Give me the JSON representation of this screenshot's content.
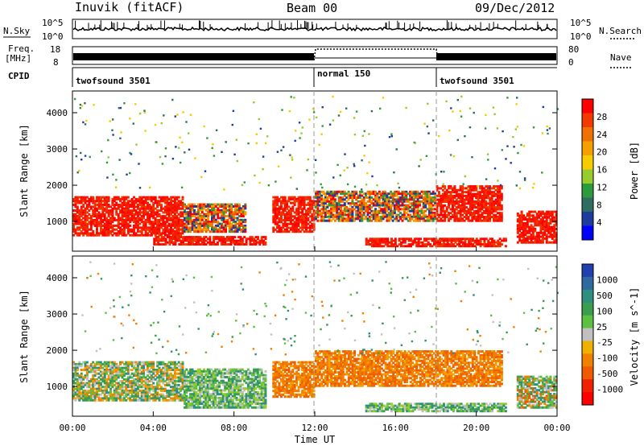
{
  "header": {
    "station": "Inuvik (fitACF)",
    "beam": "Beam 00",
    "date": "09/Dec/2012"
  },
  "top_panels": {
    "nsky_label": "N.Sky",
    "nsky_ticks": [
      "10^5",
      "10^0"
    ],
    "nsky_right_ticks": [
      "10^5",
      "10^0"
    ],
    "nsearch_label": "N.Search",
    "freq_label_line1": "Freq.",
    "freq_label_line2": "[MHz]",
    "freq_ticks": [
      "18",
      "8"
    ],
    "nave_ticks": [
      "80",
      "0"
    ],
    "nave_label": "Nave",
    "cpid_label": "CPID",
    "cpid_segments": [
      {
        "label": "twofsound 3501",
        "start_hour": 0,
        "end_hour": 12
      },
      {
        "label": "normal 150",
        "start_hour": 12,
        "end_hour": 18
      },
      {
        "label": "twofsound 3501",
        "start_hour": 18,
        "end_hour": 24
      }
    ]
  },
  "chart_data": [
    {
      "type": "heatmap",
      "ylabel": "Slant Range [km]",
      "xlabel": "Time UT",
      "xlim": [
        0,
        24
      ],
      "ylim": [
        180,
        4600
      ],
      "yticks": [
        "1000",
        "2000",
        "3000",
        "4000"
      ],
      "xticks": [
        "00:00",
        "04:00",
        "08:00",
        "12:00",
        "16:00",
        "20:00",
        "00:00"
      ],
      "colorbar": {
        "label": "Power [dB]",
        "ticks": [
          "28",
          "24",
          "20",
          "16",
          "12",
          "8",
          "4"
        ],
        "colors_top_to_bottom": [
          "#ff0000",
          "#f23a00",
          "#f07000",
          "#f5a000",
          "#f5cc00",
          "#96cc2e",
          "#2e9a3e",
          "#2e6e60",
          "#1e3c9e",
          "#0000ff"
        ]
      },
      "echo_bands": [
        {
          "from_hour": 0,
          "to_hour": 5.5,
          "range_km": [
            600,
            1700
          ],
          "power": "red"
        },
        {
          "from_hour": 5.5,
          "to_hour": 8.6,
          "range_km": [
            700,
            1500
          ],
          "power": "red-orange"
        },
        {
          "from_hour": 4,
          "to_hour": 9.6,
          "range_km": [
            350,
            600
          ],
          "power": "red"
        },
        {
          "from_hour": 9.9,
          "to_hour": 12,
          "range_km": [
            700,
            1700
          ],
          "power": "red"
        },
        {
          "from_hour": 12,
          "to_hour": 18,
          "range_km": [
            1000,
            1850
          ],
          "power": "red-orange"
        },
        {
          "from_hour": 18,
          "to_hour": 21.3,
          "range_km": [
            1000,
            2000
          ],
          "power": "red"
        },
        {
          "from_hour": 14.5,
          "to_hour": 21.5,
          "range_km": [
            300,
            550
          ],
          "power": "red"
        },
        {
          "from_hour": 22,
          "to_hour": 24,
          "range_km": [
            400,
            1300
          ],
          "power": "red"
        }
      ]
    },
    {
      "type": "heatmap",
      "ylabel": "Slant Range [km]",
      "xlabel": "Time UT",
      "xlim": [
        0,
        24
      ],
      "ylim": [
        180,
        4600
      ],
      "yticks": [
        "1000",
        "2000",
        "3000",
        "4000"
      ],
      "xticks": [
        "00:00",
        "04:00",
        "08:00",
        "12:00",
        "16:00",
        "20:00",
        "00:00"
      ],
      "colorbar": {
        "label": "Velocity [m s^-1]",
        "ticks": [
          "1000",
          "500",
          "100",
          "25",
          "-25",
          "-100",
          "-500",
          "-1000"
        ],
        "colors_top_to_bottom": [
          "#2040b0",
          "#2e6aa0",
          "#2e8e80",
          "#3a9e4e",
          "#5ec040",
          "#c0c0c0",
          "#f0b000",
          "#f08000",
          "#f05a00",
          "#ee2200",
          "#ff0000"
        ]
      },
      "echo_bands": [
        {
          "from_hour": 0,
          "to_hour": 5.5,
          "range_km": [
            600,
            1700
          ],
          "velocity": "mixed green/orange"
        },
        {
          "from_hour": 5.5,
          "to_hour": 9.6,
          "range_km": [
            400,
            1500
          ],
          "velocity": "green"
        },
        {
          "from_hour": 9.9,
          "to_hour": 12,
          "range_km": [
            700,
            1700
          ],
          "velocity": "orange"
        },
        {
          "from_hour": 12,
          "to_hour": 21.3,
          "range_km": [
            1000,
            2000
          ],
          "velocity": "orange"
        },
        {
          "from_hour": 14.5,
          "to_hour": 21.5,
          "range_km": [
            300,
            550
          ],
          "velocity": "green"
        },
        {
          "from_hour": 22,
          "to_hour": 24,
          "range_km": [
            400,
            1300
          ],
          "velocity": "mixed"
        }
      ]
    }
  ]
}
